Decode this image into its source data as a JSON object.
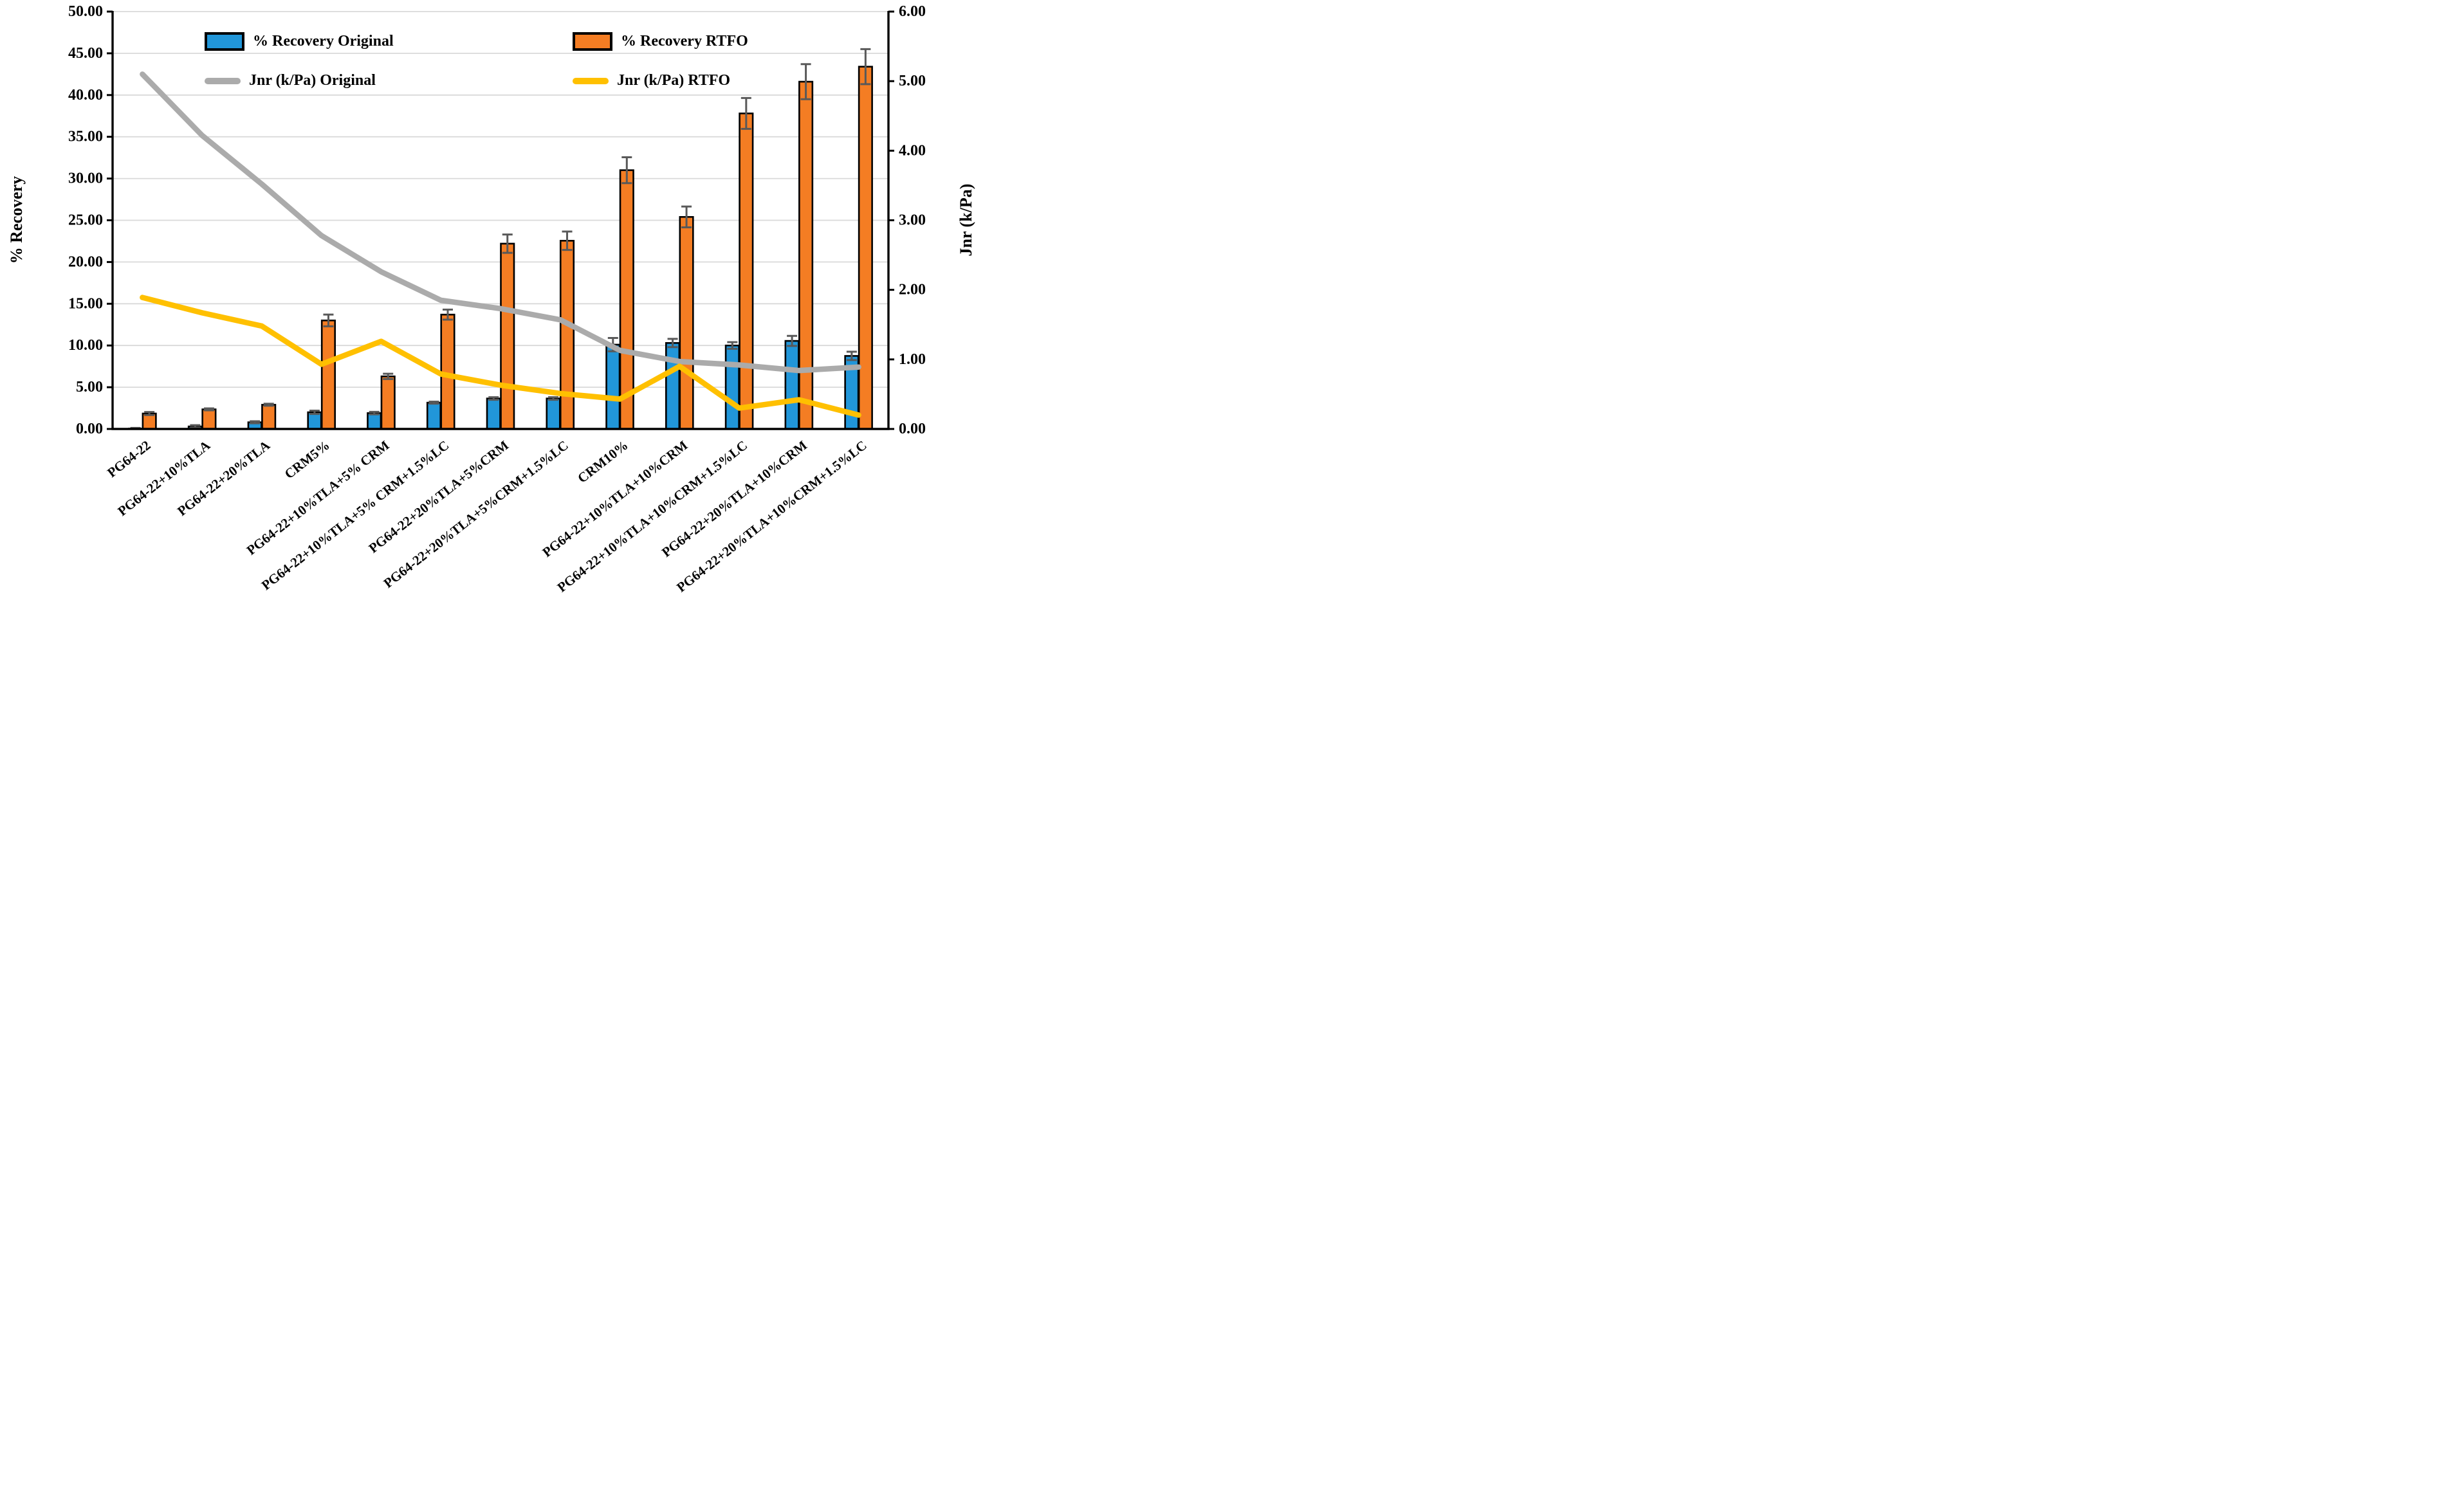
{
  "legend": {
    "items": [
      {
        "label": "% Recovery Original",
        "series": "recovery_original",
        "swatch": "bar"
      },
      {
        "label": "% Recovery RTFO",
        "series": "recovery_rtfo",
        "swatch": "bar"
      },
      {
        "label": "Jnr (k/Pa) Original",
        "series": "jnr_original",
        "swatch": "line"
      },
      {
        "label": "Jnr (k/Pa) RTFO",
        "series": "jnr_rtfo",
        "swatch": "line"
      }
    ]
  },
  "colors": {
    "recovery_original": "#2196D9",
    "recovery_rtfo": "#F47D23",
    "jnr_original": "#ABABAB",
    "jnr_rtfo": "#FFC000",
    "error_bar": "#595959",
    "gridline": "#D9D9D9",
    "axis": "#000000",
    "background": "#FFFFFF"
  },
  "chart_data": {
    "type": "combo",
    "subtypes": [
      "bar",
      "line"
    ],
    "legend_position": "top",
    "grid": "horizontal",
    "categories": [
      "PG64-22",
      "PG64-22+10%TLA",
      "PG64-22+20%TLA",
      "CRM5%",
      "PG64-22+10%TLA+5% CRM",
      "PG64-22+10%TLA+5% CRM+1.5%LC",
      "PG64-22+20%TLA+5%CRM",
      "PG64-22+20%TLA+5%CRM+1.5%LC",
      "CRM10%",
      "PG64-22+10%TLA+10%CRM",
      "PG64-22+10%TLA+10%CRM+1.5%LC",
      "PG64-22+20%TLA+10%CRM",
      "PG64-22+20%TLA+10%CRM+1.5%LC"
    ],
    "y_left": {
      "title": "% Recovery",
      "min": 0,
      "max": 50,
      "step": 5,
      "tick_labels": [
        "0.00",
        "5.00",
        "10.00",
        "15.00",
        "20.00",
        "25.00",
        "30.00",
        "35.00",
        "40.00",
        "45.00",
        "50.00"
      ]
    },
    "y_right": {
      "title": "Jnr  (k/Pa)",
      "min": 0,
      "max": 6,
      "step": 1,
      "tick_labels": [
        "0.00",
        "1.00",
        "2.00",
        "3.00",
        "4.00",
        "5.00",
        "6.00"
      ]
    },
    "series": [
      {
        "name": "% Recovery Original",
        "key": "recovery_original",
        "type": "bar",
        "axis": "left",
        "values": [
          0.05,
          0.3,
          0.8,
          2.0,
          1.9,
          3.15,
          3.65,
          3.65,
          10.1,
          10.3,
          10.0,
          10.55,
          8.75
        ],
        "errors": [
          0.08,
          0.15,
          0.12,
          0.2,
          0.15,
          0.12,
          0.15,
          0.15,
          0.8,
          0.5,
          0.4,
          0.6,
          0.5
        ]
      },
      {
        "name": "% Recovery RTFO",
        "key": "recovery_rtfo",
        "type": "bar",
        "axis": "left",
        "values": [
          1.85,
          2.35,
          2.9,
          13.0,
          6.3,
          13.7,
          22.2,
          22.55,
          31.0,
          25.4,
          37.8,
          41.6,
          43.4
        ],
        "errors": [
          0.18,
          0.12,
          0.12,
          0.7,
          0.32,
          0.6,
          1.1,
          1.1,
          1.55,
          1.25,
          1.85,
          2.1,
          2.1
        ]
      },
      {
        "name": "Jnr (k/Pa) Original",
        "key": "jnr_original",
        "type": "line",
        "axis": "right",
        "values": [
          5.1,
          4.22,
          3.52,
          2.78,
          2.26,
          1.85,
          1.73,
          1.57,
          1.13,
          0.97,
          0.92,
          0.84,
          0.89
        ]
      },
      {
        "name": "Jnr (k/Pa) RTFO",
        "key": "jnr_rtfo",
        "type": "line",
        "axis": "right",
        "values": [
          1.89,
          1.67,
          1.48,
          0.93,
          1.26,
          0.79,
          0.63,
          0.51,
          0.43,
          0.9,
          0.3,
          0.42,
          0.2
        ]
      }
    ]
  }
}
